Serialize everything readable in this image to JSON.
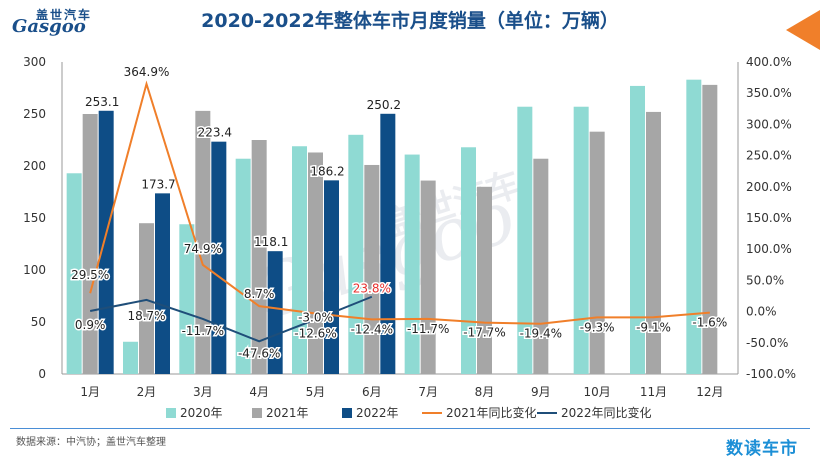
{
  "header": {
    "title": "2020-2022年整体车市月度销量（单位：万辆）",
    "logo_cn": "盖世汽车",
    "logo_en": "Gasgoo"
  },
  "footer": {
    "source": "数据来源：中汽协；盖世汽车整理",
    "brand": "数读车市"
  },
  "watermark": {
    "cn": "盖世汽车",
    "en": "Gasgoo"
  },
  "chart_data": {
    "type": "bar",
    "title": "2020-2022年整体车市月度销量（单位：万辆）",
    "categories": [
      "1月",
      "2月",
      "3月",
      "4月",
      "5月",
      "6月",
      "7月",
      "8月",
      "9月",
      "10月",
      "11月",
      "12月"
    ],
    "ylim": [
      0,
      300
    ],
    "yticks": [
      0,
      50,
      100,
      150,
      200,
      250,
      300
    ],
    "y2lim": [
      -100,
      400
    ],
    "y2ticks": [
      "-100.0%",
      "-50.0%",
      "0.0%",
      "50.0%",
      "100.0%",
      "150.0%",
      "200.0%",
      "250.0%",
      "300.0%",
      "350.0%",
      "400.0%"
    ],
    "y2tick_values": [
      -100,
      -50,
      0,
      50,
      100,
      150,
      200,
      250,
      300,
      350,
      400
    ],
    "series": [
      {
        "name": "2020年",
        "kind": "bar",
        "color": "#8fdad3",
        "values": [
          193,
          31,
          144,
          207,
          219,
          230,
          211,
          218,
          257,
          257,
          277,
          283
        ]
      },
      {
        "name": "2021年",
        "kind": "bar",
        "color": "#a6a6a6",
        "values": [
          250,
          145,
          253,
          225,
          213,
          201,
          186,
          180,
          207,
          233,
          252,
          278
        ]
      },
      {
        "name": "2022年",
        "kind": "bar",
        "color": "#0e4d86",
        "values": [
          253.1,
          173.7,
          223.4,
          118.1,
          186.2,
          250.2,
          null,
          null,
          null,
          null,
          null,
          null
        ],
        "labels": [
          "253.1",
          "173.7",
          "223.4",
          "118.1",
          "186.2",
          "250.2"
        ]
      },
      {
        "name": "2021年同比变化",
        "kind": "line",
        "color": "#f07f2a",
        "values": [
          29.5,
          364.9,
          74.9,
          8.7,
          -3.0,
          -12.4,
          -11.7,
          -17.7,
          -19.4,
          -9.3,
          -9.1,
          -1.6
        ],
        "labels": [
          "29.5%",
          "364.9%",
          "74.9%",
          "8.7%",
          "-3.0%",
          "-12.4%",
          "-11.7%",
          "-17.7%",
          "-19.4%",
          "-9.3%",
          "-9.1%",
          "-1.6%"
        ]
      },
      {
        "name": "2022年同比变化",
        "kind": "line",
        "color": "#1f4e79",
        "values": [
          0.9,
          18.7,
          -11.7,
          -47.6,
          -12.6,
          23.8,
          null,
          null,
          null,
          null,
          null,
          null
        ],
        "labels": [
          "0.9%",
          "18.7%",
          "-11.7%",
          "-47.6%",
          "-12.6%",
          "23.8%"
        ]
      }
    ],
    "highlight_label_color": "#e8312f",
    "legend": [
      "2020年",
      "2021年",
      "2022年",
      "2021年同比变化",
      "2022年同比变化"
    ]
  }
}
